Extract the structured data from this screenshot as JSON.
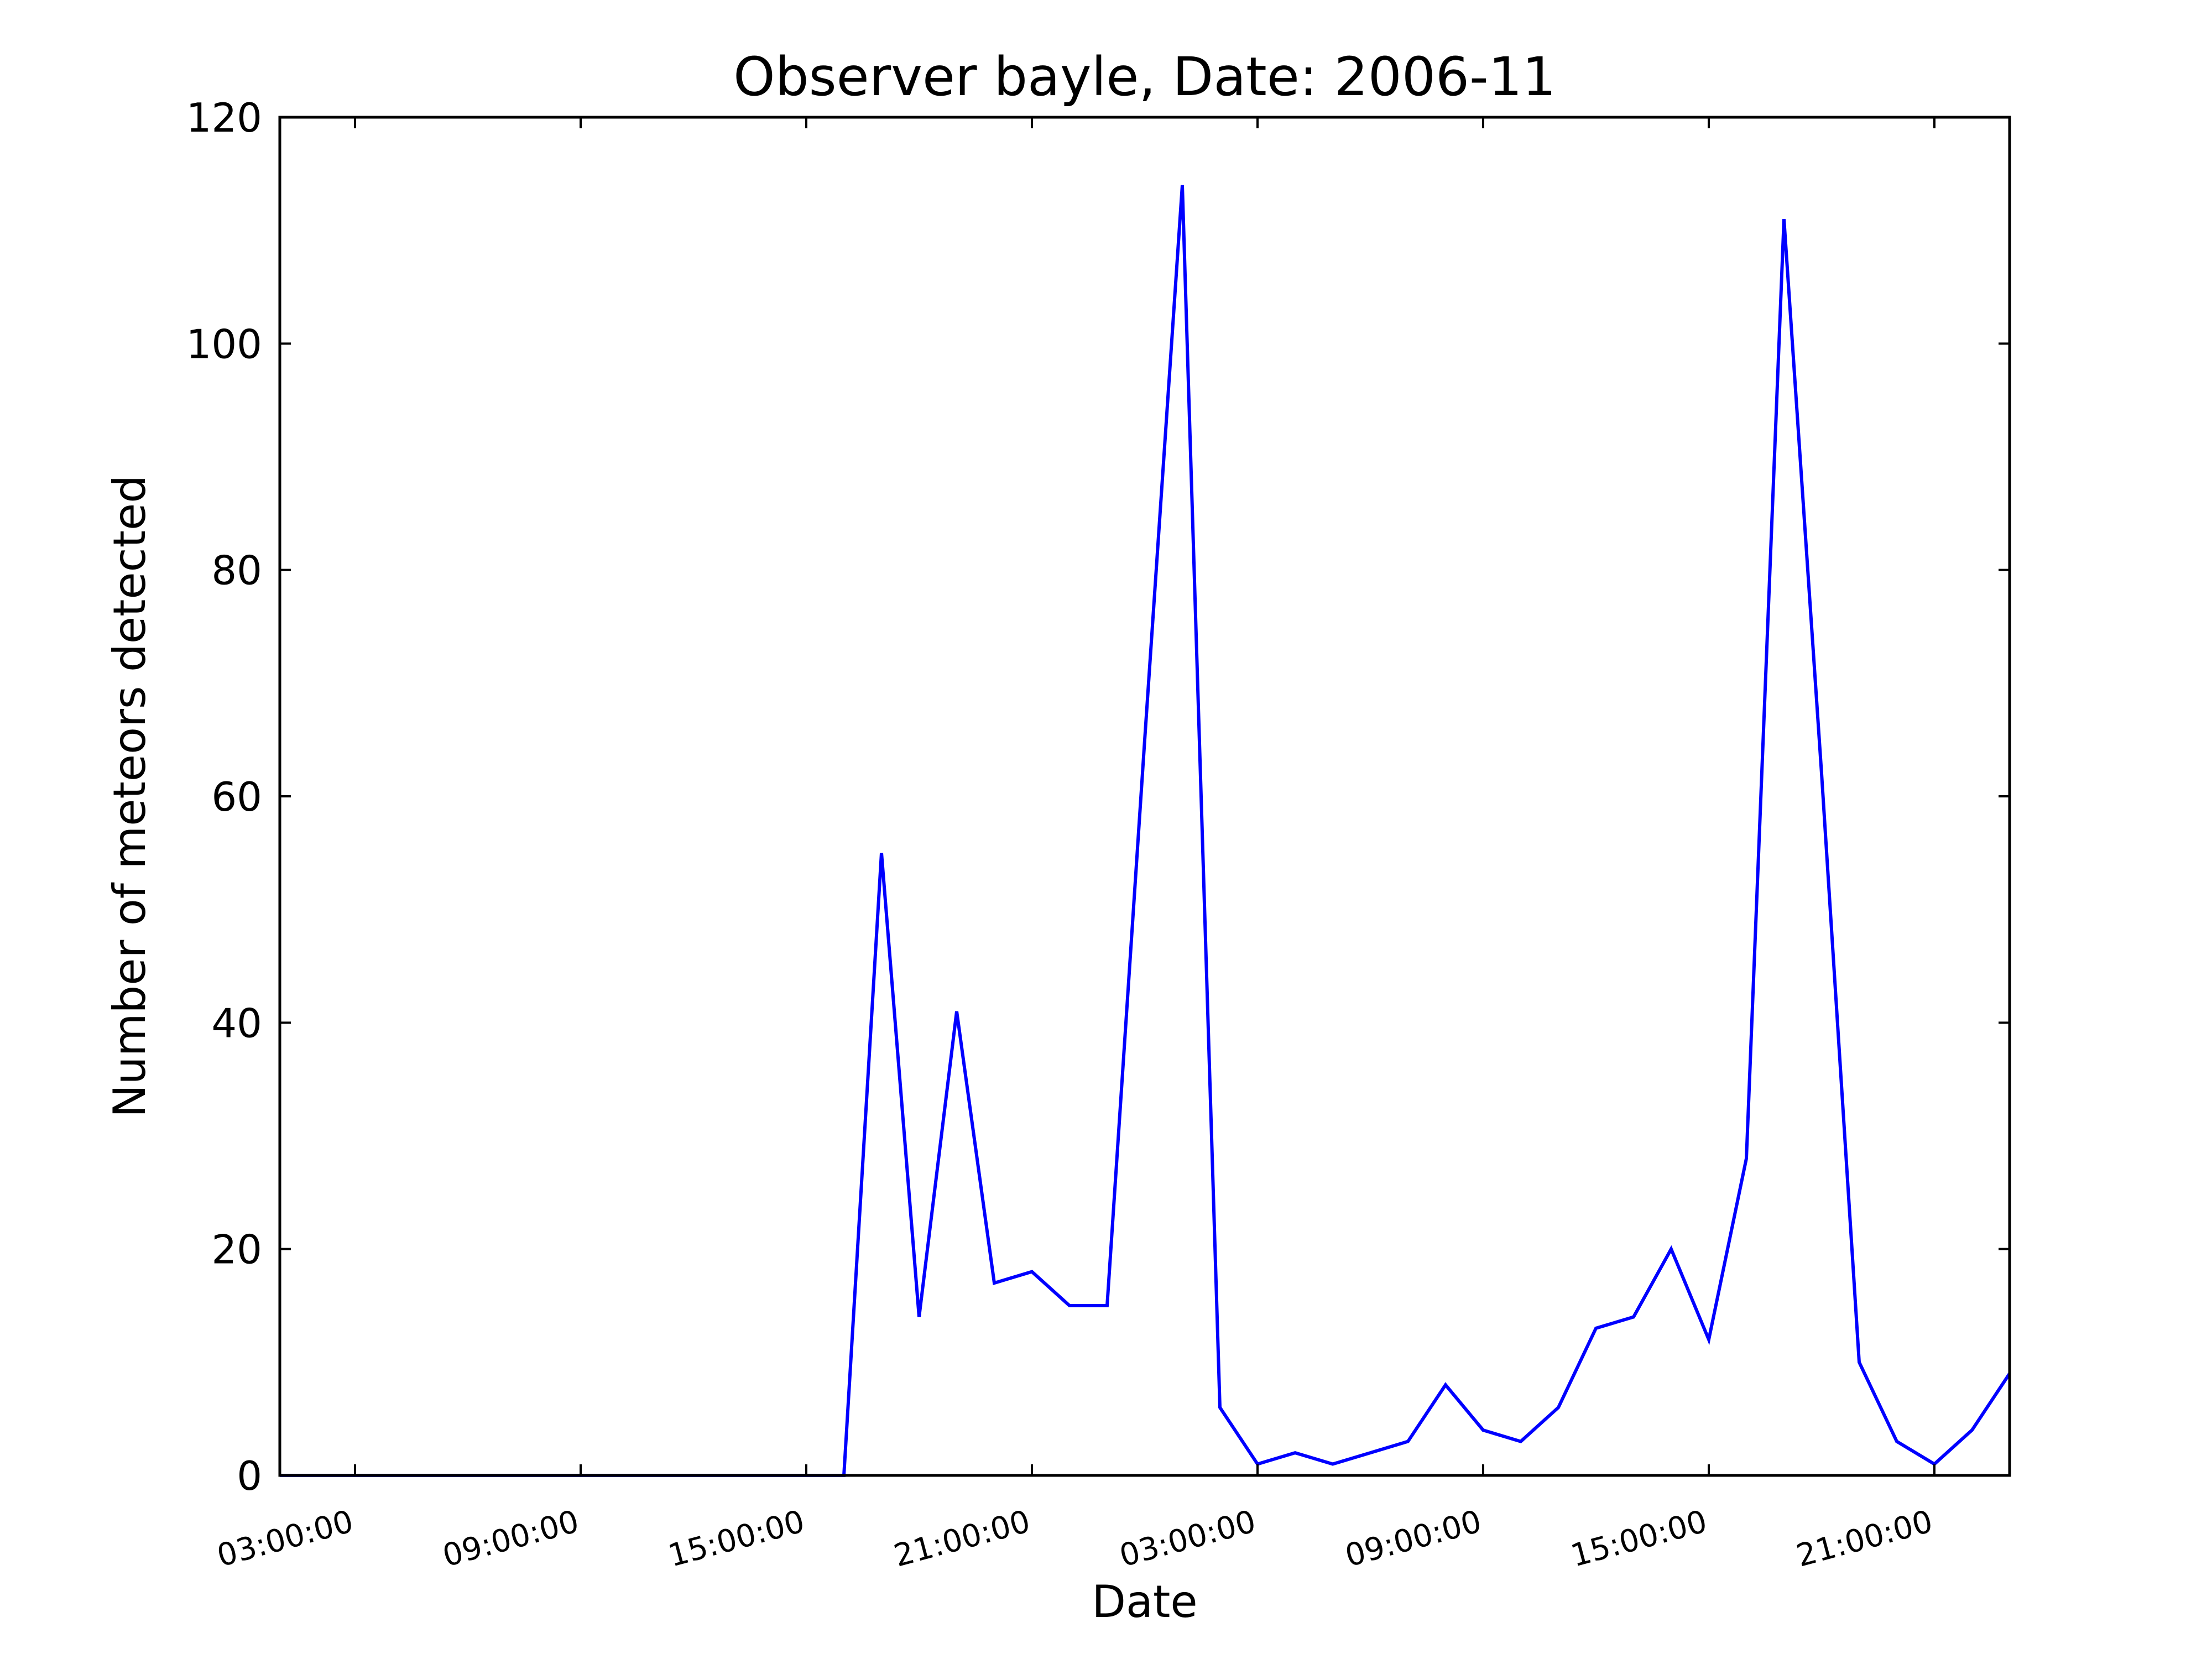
{
  "chart_data": {
    "type": "line",
    "title": "Observer bayle, Date: 2006-11",
    "xlabel": "Date",
    "ylabel": "Number of meteors detected",
    "x_tick_labels": [
      "03:00:00",
      "09:00:00",
      "15:00:00",
      "21:00:00",
      "03:00:00",
      "09:00:00",
      "15:00:00",
      "21:00:00"
    ],
    "x_tick_hours": [
      3,
      9,
      15,
      21,
      27,
      33,
      39,
      45
    ],
    "y_ticks": [
      0,
      20,
      40,
      60,
      80,
      100,
      120
    ],
    "xlim_hours": [
      1,
      47
    ],
    "ylim": [
      0,
      120
    ],
    "grid": false,
    "line_color": "#0000ff",
    "series": [
      {
        "hours": [
          1,
          2,
          3,
          4,
          5,
          6,
          7,
          8,
          9,
          10,
          11,
          12,
          13,
          14,
          15,
          16,
          17,
          18,
          19,
          20,
          21,
          22,
          23,
          24,
          25,
          26,
          27,
          28,
          29,
          30,
          31,
          32,
          33,
          34,
          35,
          36,
          37,
          38,
          39,
          40,
          41,
          42,
          43,
          44,
          45,
          46,
          47
        ],
        "values": [
          0,
          0,
          0,
          0,
          0,
          0,
          0,
          0,
          0,
          0,
          0,
          0,
          0,
          0,
          0,
          0,
          55,
          14,
          41,
          17,
          18,
          15,
          15,
          65,
          114,
          6,
          1,
          2,
          1,
          2,
          3,
          8,
          4,
          3,
          6,
          13,
          14,
          20,
          12,
          28,
          111,
          62,
          10,
          3,
          1,
          4,
          9
        ]
      }
    ]
  }
}
